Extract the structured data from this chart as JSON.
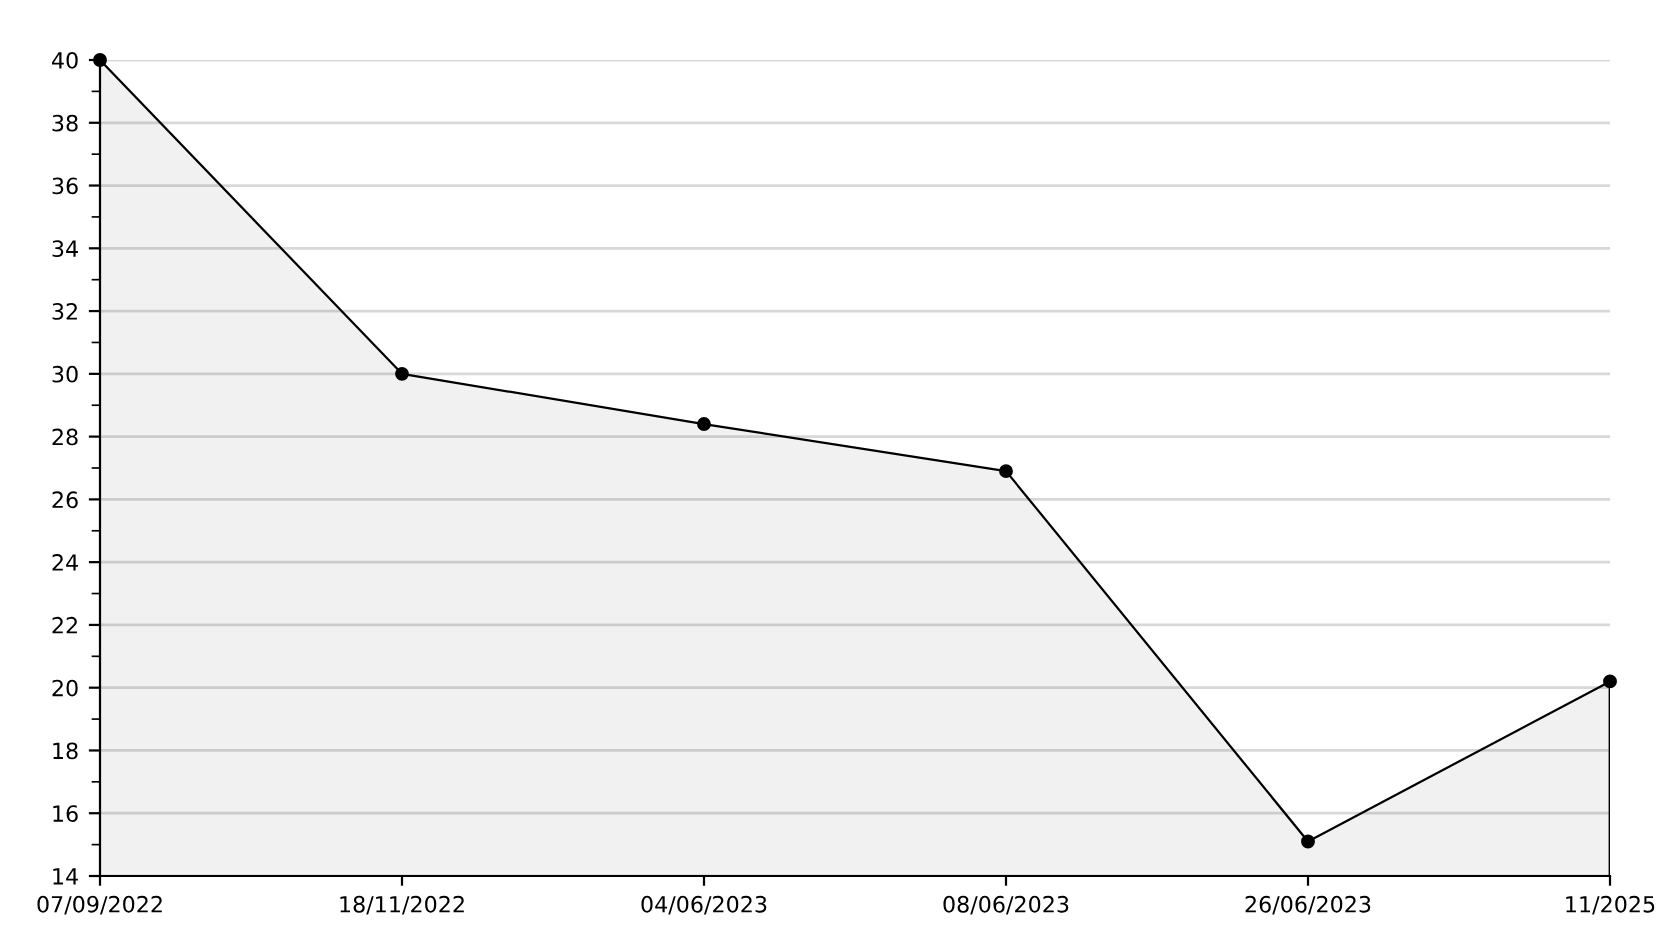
{
  "chart_data": {
    "type": "area",
    "categories": [
      "07/09/2022",
      "18/11/2022",
      "04/06/2023",
      "08/06/2023",
      "26/06/2023",
      "11/2025"
    ],
    "series": [
      {
        "color": "#000000",
        "values": [
          40,
          30,
          28.4,
          26.9,
          15.1,
          20.2
        ]
      }
    ],
    "ylim": [
      14,
      40
    ],
    "yticks": [
      14,
      {
        "value": 15,
        "label": null
      },
      16,
      {
        "value": 17,
        "label": null
      },
      18,
      {
        "value": 19,
        "label": null
      },
      20,
      {
        "value": 21,
        "label": null
      },
      22,
      {
        "value": 23,
        "label": null
      },
      24,
      {
        "value": 25,
        "label": null
      },
      26,
      {
        "value": 27,
        "label": null
      },
      28,
      {
        "value": 29,
        "label": null
      },
      30,
      {
        "value": 31,
        "label": null
      },
      32,
      {
        "value": 33,
        "label": null
      },
      34,
      {
        "value": 35,
        "label": null
      },
      36,
      {
        "value": 37,
        "label": null
      },
      38,
      {
        "value": 39,
        "label": null
      },
      40
    ],
    "grid": "y",
    "marker": "circle",
    "line_style": "solid",
    "legend": false
  }
}
